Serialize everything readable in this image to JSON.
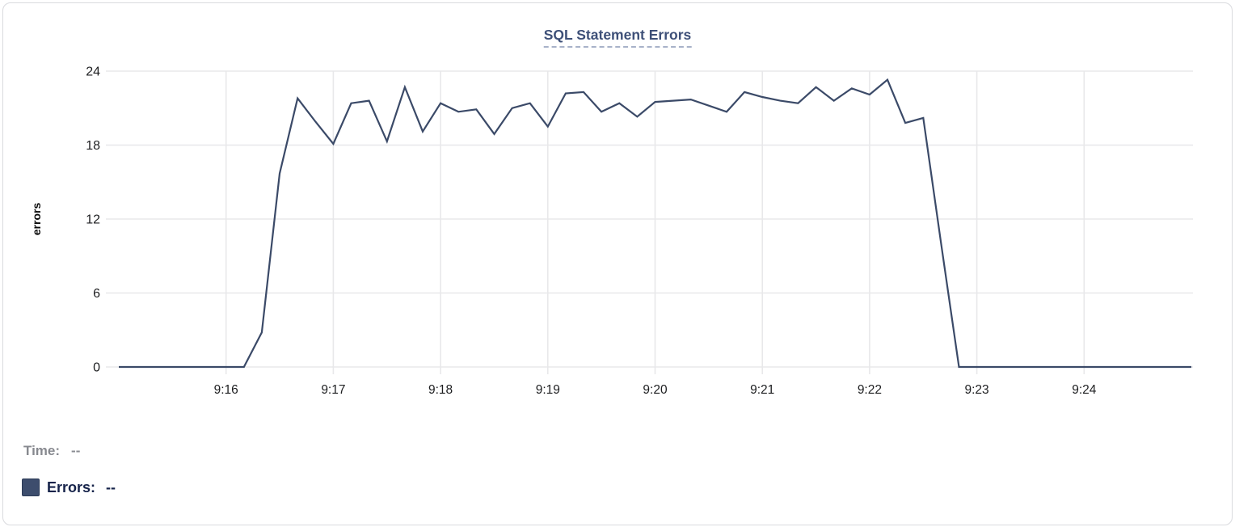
{
  "card": {
    "title": "SQL Statement Errors"
  },
  "chart_data": {
    "type": "line",
    "title": "SQL Statement Errors",
    "xlabel": "",
    "ylabel": "errors",
    "ylim": [
      0,
      24
    ],
    "yticks": [
      0,
      6,
      12,
      18,
      24
    ],
    "xticks": [
      "9:16",
      "9:17",
      "9:18",
      "9:19",
      "9:20",
      "9:21",
      "9:22",
      "9:23",
      "9:24"
    ],
    "grid": true,
    "legend_position": "bottom-left",
    "x": [
      "9:15:00",
      "9:15:10",
      "9:15:20",
      "9:15:30",
      "9:15:40",
      "9:15:50",
      "9:16:00",
      "9:16:10",
      "9:16:20",
      "9:16:30",
      "9:16:40",
      "9:16:50",
      "9:17:00",
      "9:17:10",
      "9:17:20",
      "9:17:30",
      "9:17:40",
      "9:17:50",
      "9:18:00",
      "9:18:10",
      "9:18:20",
      "9:18:30",
      "9:18:40",
      "9:18:50",
      "9:19:00",
      "9:19:10",
      "9:19:20",
      "9:19:30",
      "9:19:40",
      "9:19:50",
      "9:20:00",
      "9:20:10",
      "9:20:20",
      "9:20:30",
      "9:20:40",
      "9:20:50",
      "9:21:00",
      "9:21:10",
      "9:21:20",
      "9:21:30",
      "9:21:40",
      "9:21:50",
      "9:22:00",
      "9:22:10",
      "9:22:20",
      "9:22:30",
      "9:22:40",
      "9:22:50",
      "9:23:00",
      "9:23:10",
      "9:23:20",
      "9:23:30",
      "9:23:40",
      "9:23:50",
      "9:24:00",
      "9:24:10",
      "9:24:20",
      "9:24:30",
      "9:24:40",
      "9:24:50",
      "9:25:00"
    ],
    "series": [
      {
        "name": "Errors",
        "color": "#3b4a68",
        "values": [
          0,
          0,
          0,
          0,
          0,
          0,
          0,
          0,
          2.8,
          15.7,
          21.8,
          19.9,
          18.1,
          21.4,
          21.6,
          18.3,
          22.7,
          19.1,
          21.4,
          20.7,
          20.9,
          18.9,
          21,
          21.4,
          19.5,
          22.2,
          22.3,
          20.7,
          21.4,
          20.3,
          21.5,
          21.6,
          21.7,
          21.2,
          20.7,
          22.3,
          21.9,
          21.6,
          21.4,
          22.7,
          21.6,
          22.6,
          22.1,
          23.3,
          19.8,
          20.2,
          10,
          0,
          0,
          0,
          0,
          0,
          0,
          0,
          0,
          0,
          0,
          0,
          0,
          0,
          0
        ]
      }
    ]
  },
  "legend": {
    "time_label": "Time:",
    "time_value": "--",
    "errors_label": "Errors:",
    "errors_value": "--",
    "swatch_color": "#3d4d6d"
  },
  "colors": {
    "line": "#3b4a68",
    "gridline": "#e8e8ea",
    "title": "#3e5078",
    "title_underline": "#a8b2c9",
    "time_text": "#87898f",
    "errors_text": "#16234a"
  }
}
